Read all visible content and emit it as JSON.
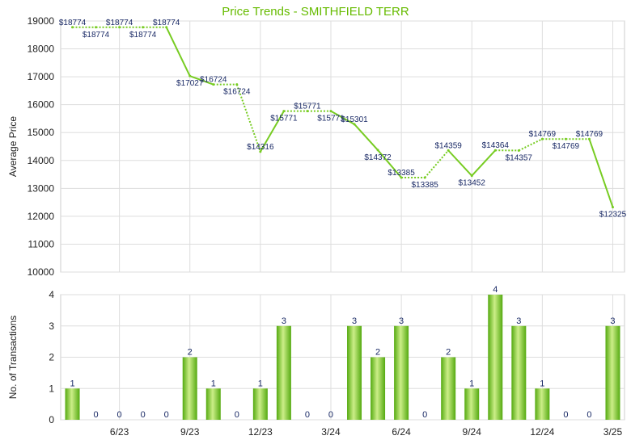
{
  "chart_data": [
    {
      "type": "line",
      "title": "Price Trends - SMITHFIELD TERR",
      "ylabel": "Average Price",
      "ylim": [
        10000,
        19000
      ],
      "yticks": [
        10000,
        11000,
        12000,
        13000,
        14000,
        15000,
        16000,
        17000,
        18000,
        19000
      ],
      "grid": true,
      "x_month_index": [
        0,
        1,
        2,
        3,
        4,
        5,
        6,
        7,
        8,
        9,
        10,
        11,
        12,
        13,
        14,
        15,
        16,
        17,
        18,
        19,
        20,
        21,
        22,
        23
      ],
      "values": [
        18774,
        18774,
        18774,
        18774,
        18774,
        17027,
        16724,
        16724,
        14316,
        15771,
        15771,
        15771,
        15301,
        14372,
        13385,
        13385,
        14359,
        13452,
        14364,
        14357,
        14769,
        14769,
        14769,
        12325
      ],
      "labels": [
        "$18774",
        "$18774",
        "$18774",
        "$18774",
        "$18774",
        "$17027",
        "$16724",
        "$16724",
        "$14316",
        "$15771",
        "$15771",
        "$15771",
        "$15301",
        "$14372",
        "$13385",
        "$13385",
        "$14359",
        "$13452",
        "$14364",
        "$14357",
        "$14769",
        "$14769",
        "$14769",
        "$12325"
      ],
      "carried_forward": [
        false,
        true,
        false,
        true,
        false,
        false,
        false,
        true,
        false,
        false,
        true,
        false,
        false,
        false,
        false,
        true,
        false,
        false,
        false,
        true,
        false,
        true,
        false,
        false
      ]
    },
    {
      "type": "bar",
      "ylabel": "No. of Transactions",
      "ylim": [
        0,
        4
      ],
      "yticks": [
        0,
        1,
        2,
        3,
        4
      ],
      "grid": true,
      "values": [
        1,
        0,
        0,
        0,
        0,
        2,
        1,
        0,
        1,
        3,
        0,
        0,
        3,
        2,
        3,
        0,
        2,
        1,
        4,
        3,
        1,
        0,
        0,
        3
      ]
    }
  ],
  "x_tick_labels": [
    {
      "i": 2,
      "label": "6/23"
    },
    {
      "i": 5,
      "label": "9/23"
    },
    {
      "i": 8,
      "label": "12/23"
    },
    {
      "i": 11,
      "label": "3/24"
    },
    {
      "i": 14,
      "label": "6/24"
    },
    {
      "i": 17,
      "label": "9/24"
    },
    {
      "i": 20,
      "label": "12/24"
    },
    {
      "i": 23,
      "label": "3/25"
    }
  ],
  "colors": {
    "line": "#77cc22",
    "title": "#66bb00",
    "bar_light": "#ccee88",
    "bar_dark": "#55aa11",
    "grid": "#dddddd",
    "label": "#1a2a66"
  }
}
